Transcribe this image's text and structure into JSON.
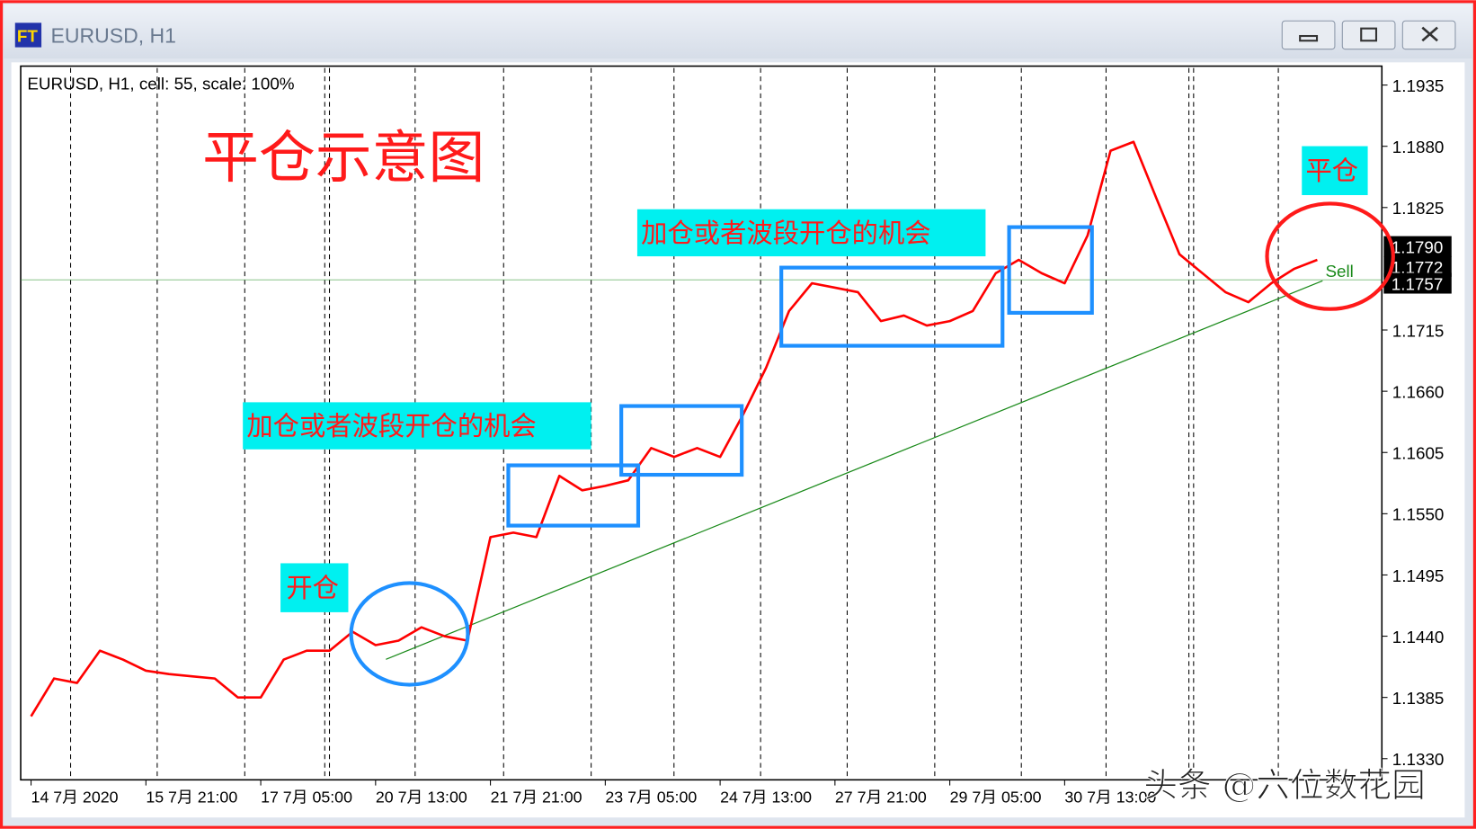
{
  "window_title": "EURUSD, H1",
  "chart_data": {
    "type": "line",
    "title": "EURUSD, H1, cell: 55, scale: 100%",
    "annotations": {
      "main": "平仓示意图",
      "add_1": "加仓或者波段开仓的机会",
      "add_2": "加仓或者波段开仓的机会",
      "open": "开仓",
      "close": "平仓",
      "sell": "Sell"
    },
    "watermark": "头条 @六位数花园",
    "categories": [
      "14 7月 2020",
      null,
      null,
      null,
      null,
      "15 7月 21:00",
      null,
      null,
      null,
      null,
      "17 7月 05:00",
      null,
      null,
      null,
      null,
      "20 7月 13:00",
      null,
      null,
      null,
      null,
      "21 7月 21:00",
      null,
      null,
      null,
      null,
      "23 7月 05:00",
      null,
      null,
      null,
      null,
      "24 7月 13:00",
      null,
      null,
      null,
      null,
      "27 7月 21:00",
      null,
      null,
      null,
      null,
      "29 7月 05:00",
      null,
      null,
      null,
      null,
      "30 7月 13:00",
      null,
      null,
      null,
      null,
      null,
      null,
      null,
      null,
      null,
      null,
      null
    ],
    "values": [
      1.1368,
      1.1402,
      1.1398,
      1.1427,
      1.1419,
      1.1409,
      1.1406,
      1.1404,
      1.1402,
      1.1385,
      1.1385,
      1.1419,
      1.1427,
      1.1427,
      1.1444,
      1.1432,
      1.1436,
      1.1448,
      1.144,
      1.1436,
      1.1529,
      1.1533,
      1.1529,
      1.1584,
      1.1571,
      1.1575,
      1.158,
      1.1609,
      1.1601,
      1.1609,
      1.1601,
      1.1639,
      1.1681,
      1.1732,
      1.1757,
      1.1753,
      1.1749,
      1.1723,
      1.1728,
      1.1719,
      1.1723,
      1.1732,
      1.1766,
      1.1778,
      1.1766,
      1.1757,
      1.18,
      1.1876,
      1.1884,
      1.1833,
      1.1783,
      1.1766,
      1.1749,
      1.174,
      1.1757,
      1.177,
      1.1778
    ],
    "color": "#ff0000",
    "ylim": [
      1.1311,
      1.1952
    ],
    "yticks": [
      {
        "value": 1.133,
        "label": "1.1330"
      },
      {
        "value": 1.1385,
        "label": "1.1385"
      },
      {
        "value": 1.144,
        "label": "1.1440"
      },
      {
        "value": 1.1495,
        "label": "1.1495"
      },
      {
        "value": 1.155,
        "label": "1.1550"
      },
      {
        "value": 1.1605,
        "label": "1.1605"
      },
      {
        "value": 1.166,
        "label": "1.1660"
      },
      {
        "value": 1.1715,
        "label": "1.1715"
      },
      {
        "value": 1.1825,
        "label": "1.1825"
      },
      {
        "value": 1.188,
        "label": "1.1880"
      },
      {
        "value": 1.1935,
        "label": "1.1935"
      }
    ],
    "price_marks": [
      {
        "value": 1.179,
        "label": "1.1790"
      },
      {
        "value": 1.1772,
        "label": "1.1772"
      },
      {
        "value": 1.1757,
        "label": "1.1757"
      }
    ]
  }
}
